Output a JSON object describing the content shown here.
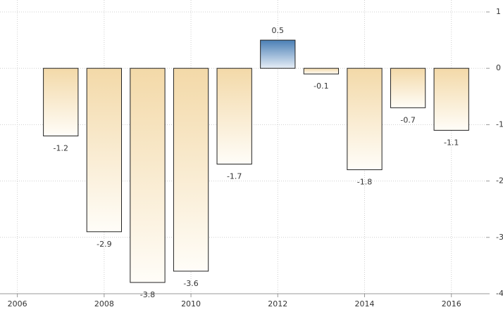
{
  "chart_data": {
    "type": "bar",
    "x": [
      2007,
      2008,
      2009,
      2010,
      2011,
      2012,
      2013,
      2014,
      2015,
      2016
    ],
    "values": [
      -1.2,
      -2.9,
      -3.8,
      -3.6,
      -1.7,
      0.5,
      -0.1,
      -1.8,
      -0.7,
      -1.1
    ],
    "colors": {
      "positive": "#4a7fb5",
      "negative": "#f3d9a8"
    },
    "xlim": [
      2005.6,
      2016.8
    ],
    "xticks": [
      2006,
      2008,
      2010,
      2012,
      2014,
      2016
    ],
    "ylim": [
      -4,
      1
    ],
    "yticks": [
      1,
      0,
      -1,
      -2,
      -3,
      -4
    ],
    "grid": true
  }
}
